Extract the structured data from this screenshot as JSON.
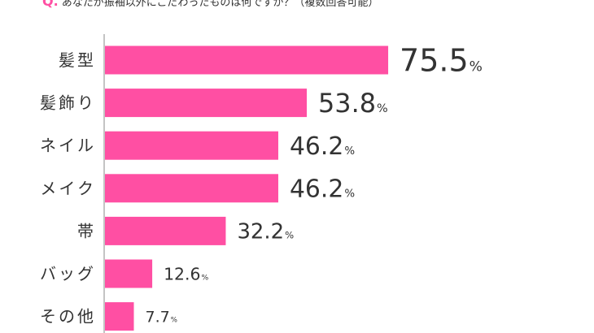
{
  "question": {
    "mark": "Q.",
    "text": "あなたが振袖以外にこだわったものは何ですか？（複数回答可能）"
  },
  "colors": {
    "bar": "#ff4fa3",
    "text": "#333333",
    "axis": "#888888"
  },
  "chart_data": {
    "type": "bar",
    "orientation": "horizontal",
    "categories": [
      "髪型",
      "髪飾り",
      "ネイル",
      "メイク",
      "帯",
      "バッグ",
      "その他"
    ],
    "values": [
      75.5,
      53.8,
      46.2,
      46.2,
      32.2,
      12.6,
      7.7
    ],
    "value_labels": [
      "75.5",
      "53.8",
      "46.2",
      "46.2",
      "32.2",
      "12.6",
      "7.7"
    ],
    "unit": "%",
    "xlim": [
      0,
      100
    ],
    "grid": false,
    "legend": "none"
  }
}
